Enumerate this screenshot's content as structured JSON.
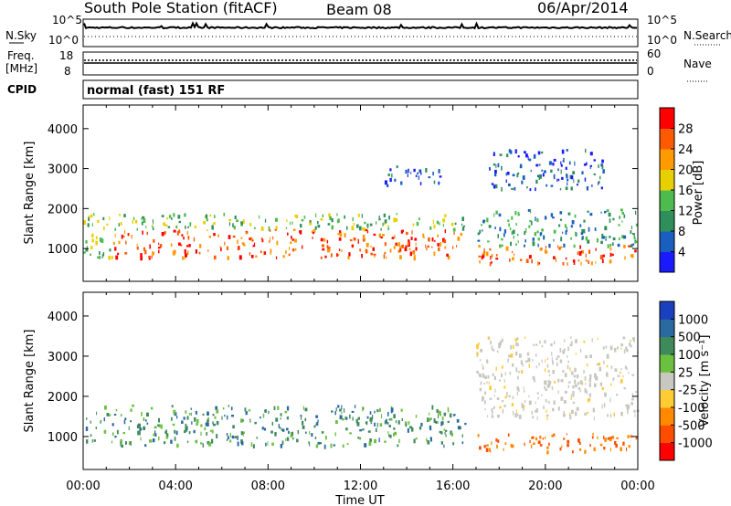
{
  "header": {
    "station": "South Pole Station (fitACF)",
    "beam": "Beam 08",
    "date": "06/Apr/2014"
  },
  "status_panels": {
    "nsky_label": "N.Sky",
    "nsky_ticks": [
      "10^5",
      "10^0"
    ],
    "nsearch_label": "N.Search",
    "nsearch_ticks": [
      "10^5",
      "10^0"
    ],
    "freq_label_line1": "Freq.",
    "freq_label_line2": "[MHz]",
    "freq_ticks": [
      "18",
      "8"
    ],
    "nave_label": "Nave",
    "nave_ticks": [
      "60",
      "0"
    ],
    "cpid_label": "CPID",
    "cpid_value": "normal (fast) 151 RF"
  },
  "chart_data": [
    {
      "type": "heatmap",
      "quantity": "power",
      "ylabel": "Slant Range [km]",
      "xlabel": "",
      "ylim": [
        180,
        4590
      ],
      "yticks": [
        "1000",
        "2000",
        "3000",
        "4000"
      ],
      "ytick_values": [
        1000,
        2000,
        3000,
        4000
      ],
      "x_range_hours": [
        0,
        24
      ],
      "xticks": [
        "00:00",
        "04:00",
        "08:00",
        "12:00",
        "16:00",
        "20:00",
        "00:00"
      ],
      "colorbar": {
        "label": "Power [dB]",
        "ticks": [
          "4",
          "8",
          "12",
          "16",
          "20",
          "24",
          "28"
        ],
        "colors": [
          "#1a1aff",
          "#1a5fc0",
          "#2f8f5a",
          "#4dbb4d",
          "#e8d000",
          "#ff9a00",
          "#ff5a00",
          "#ff0000"
        ]
      },
      "scatter_regions": [
        {
          "t_start": 0.0,
          "t_end": 1.3,
          "r_low": 800,
          "r_high": 1900,
          "level": 3
        },
        {
          "t_start": 1.3,
          "t_end": 16.5,
          "r_low": 800,
          "r_high": 1500,
          "level": 6
        },
        {
          "t_start": 1.3,
          "t_end": 16.5,
          "r_low": 1500,
          "r_high": 1900,
          "level": 3
        },
        {
          "t_start": 17.0,
          "t_end": 24.0,
          "r_low": 650,
          "r_high": 1100,
          "level": 6
        },
        {
          "t_start": 17.0,
          "t_end": 24.0,
          "r_low": 1100,
          "r_high": 2000,
          "level": 2
        },
        {
          "t_start": 13.0,
          "t_end": 15.5,
          "r_low": 2600,
          "r_high": 3100,
          "level": 1
        },
        {
          "t_start": 17.5,
          "t_end": 22.5,
          "r_low": 2500,
          "r_high": 3500,
          "level": 1
        }
      ]
    },
    {
      "type": "heatmap",
      "quantity": "velocity",
      "ylabel": "Slant Range [km]",
      "xlabel": "Time UT",
      "ylim": [
        180,
        4590
      ],
      "yticks": [
        "1000",
        "2000",
        "3000",
        "4000"
      ],
      "ytick_values": [
        1000,
        2000,
        3000,
        4000
      ],
      "x_range_hours": [
        0,
        24
      ],
      "xticks": [
        "00:00",
        "04:00",
        "08:00",
        "12:00",
        "16:00",
        "20:00",
        "00:00"
      ],
      "colorbar": {
        "label": "Velocity [m s⁻¹]",
        "ticks": [
          "1000",
          "500",
          "100",
          "25",
          "-25",
          "-100",
          "-500",
          "-1000"
        ],
        "colors": [
          "#1a3fbf",
          "#2a6aa0",
          "#3f8a5a",
          "#6cc040",
          "#c8c8c0",
          "#ffcc33",
          "#ff8a00",
          "#ff4d00",
          "#ff0000"
        ]
      },
      "scatter_regions": [
        {
          "t_start": 0.0,
          "t_end": 16.5,
          "r_low": 800,
          "r_high": 1800,
          "level": "positive"
        },
        {
          "t_start": 17.0,
          "t_end": 24.0,
          "r_low": 650,
          "r_high": 1100,
          "level": "negative"
        },
        {
          "t_start": 17.0,
          "t_end": 24.0,
          "r_low": 1500,
          "r_high": 3500,
          "level": "near-zero"
        }
      ]
    }
  ]
}
